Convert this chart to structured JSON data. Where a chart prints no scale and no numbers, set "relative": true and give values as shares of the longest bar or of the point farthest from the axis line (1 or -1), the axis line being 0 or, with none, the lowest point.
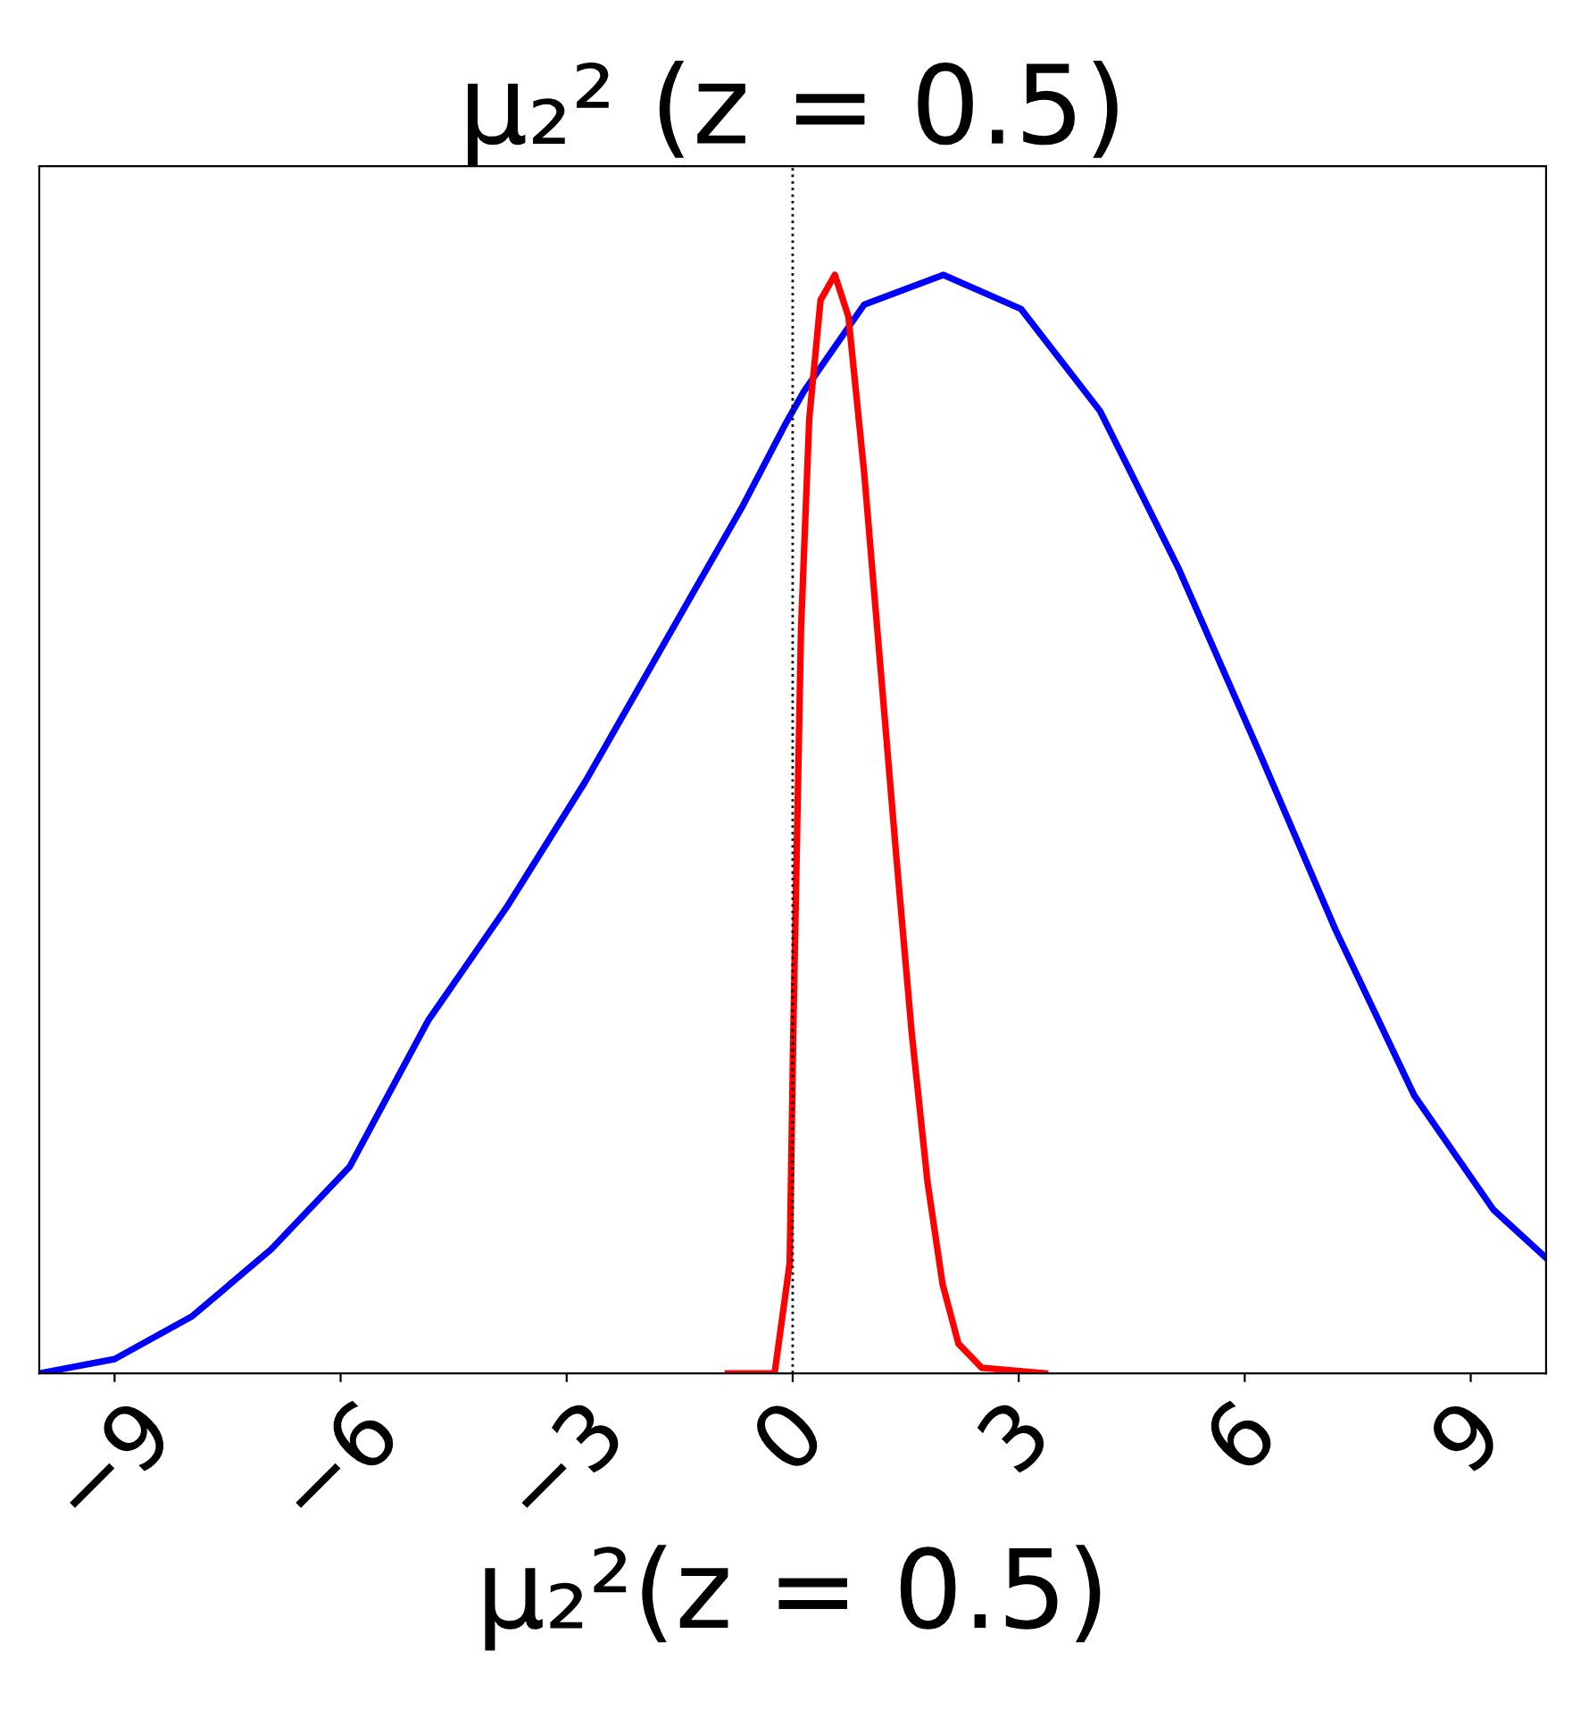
{
  "chart_data": {
    "type": "line",
    "title": "μ₂² (z = 0.5)",
    "xlabel": "μ₂²(z = 0.5)",
    "relative": true,
    "tick_labels": "x",
    "grid": false,
    "legend": false,
    "xlim": [
      -10,
      10
    ],
    "xticks": [
      {
        "value": -9,
        "label": "−9"
      },
      {
        "value": -6,
        "label": "−6"
      },
      {
        "value": -3,
        "label": "−3"
      },
      0,
      3,
      6,
      9
    ],
    "ref_lines": [
      {
        "axis": "x",
        "value": 0,
        "color": "#000000",
        "line_style": "dotted"
      }
    ],
    "series": [
      {
        "color": "#0000ff",
        "x": [
          -10,
          -9.0,
          -7.97,
          -6.92,
          -5.88,
          -4.84,
          -3.79,
          -2.75,
          -1.71,
          -0.66,
          -0.09,
          0.15,
          0.95,
          2.0,
          3.03,
          4.08,
          5.12,
          6.17,
          7.21,
          8.25,
          9.3,
          10
        ],
        "values": [
          0.0,
          0.013,
          0.052,
          0.113,
          0.188,
          0.321,
          0.425,
          0.539,
          0.664,
          0.79,
          0.865,
          0.894,
          0.973,
          1.0,
          0.969,
          0.876,
          0.733,
          0.569,
          0.403,
          0.253,
          0.149,
          0.105
        ]
      },
      {
        "color": "#ff0000",
        "x": [
          -0.86,
          -0.24,
          -0.04,
          0.01,
          0.11,
          0.22,
          0.37,
          0.56,
          0.74,
          0.95,
          1.16,
          1.37,
          1.58,
          1.79,
          1.99,
          2.2,
          2.51,
          3.35
        ],
        "values": [
          0.0,
          0.0,
          0.1,
          0.317,
          0.676,
          0.869,
          0.977,
          1.0,
          0.962,
          0.819,
          0.647,
          0.475,
          0.31,
          0.174,
          0.081,
          0.027,
          0.005,
          0.0
        ]
      }
    ]
  }
}
